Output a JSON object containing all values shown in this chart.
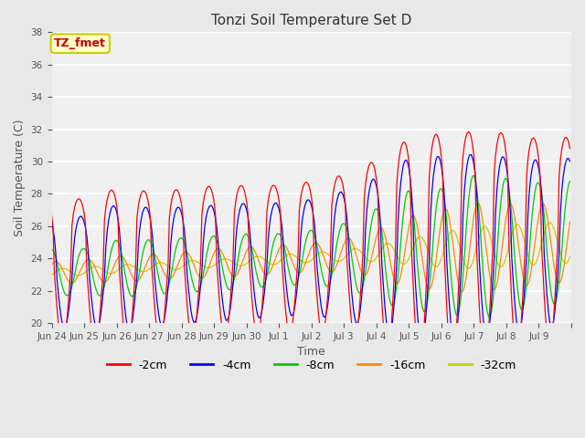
{
  "title": "Tonzi Soil Temperature Set D",
  "xlabel": "Time",
  "ylabel": "Soil Temperature (C)",
  "ylim": [
    20,
    38
  ],
  "yticks": [
    20,
    22,
    24,
    26,
    28,
    30,
    32,
    34,
    36,
    38
  ],
  "annotation_text": "TZ_fmet",
  "annotation_color": "#cc0000",
  "annotation_bg": "#ffffcc",
  "annotation_border": "#cccc00",
  "colors": {
    "-2cm": "#ff0000",
    "-4cm": "#0000ff",
    "-8cm": "#00cc00",
    "-16cm": "#ff8800",
    "-32cm": "#cccc00"
  },
  "legend_labels": [
    "-2cm",
    "-4cm",
    "-8cm",
    "-16cm",
    "-32cm"
  ],
  "bg_color": "#e8e8e8",
  "plot_bg_color": "#f0f0f0",
  "tick_labels": [
    "Jun 24",
    "Jun 25",
    "Jun 26",
    "Jun 27",
    "Jun 28",
    "Jun 29",
    "Jun 30",
    "Jul 1",
    "Jul 2",
    "Jul 3",
    "Jul 4",
    "Jul 5",
    "Jul 6",
    "Jul 7",
    "Jul 8",
    "Jul 9"
  ],
  "base_temp": 23.1,
  "trend_per_day": 0.12,
  "peak_hour": 14,
  "hours_per_day": 24,
  "total_days": 16,
  "amp_profiles": {
    "-2cm": [
      4.5,
      4.5,
      5.0,
      4.7,
      4.7,
      4.8,
      4.7,
      4.6,
      4.7,
      5.0,
      5.8,
      7.0,
      7.2,
      7.2,
      7.0,
      6.5
    ],
    "-4cm": [
      3.5,
      3.4,
      4.0,
      3.7,
      3.6,
      3.6,
      3.6,
      3.5,
      3.6,
      4.0,
      4.7,
      5.8,
      5.8,
      5.8,
      5.5,
      5.2
    ],
    "-8cm": [
      1.5,
      1.4,
      1.8,
      1.7,
      1.7,
      1.7,
      1.7,
      1.6,
      1.7,
      2.0,
      2.8,
      3.8,
      3.8,
      4.5,
      4.2,
      3.8
    ],
    "-16cm": [
      0.7,
      0.7,
      0.8,
      0.8,
      0.8,
      0.9,
      0.9,
      0.9,
      0.9,
      1.0,
      1.5,
      2.2,
      2.5,
      2.8,
      2.6,
      2.5
    ],
    "-32cm": [
      0.25,
      0.25,
      0.25,
      0.25,
      0.25,
      0.25,
      0.25,
      0.3,
      0.3,
      0.35,
      0.5,
      0.8,
      1.1,
      1.3,
      1.3,
      1.3
    ]
  },
  "phase_lag_hours": {
    "-2cm": 0.0,
    "-4cm": 1.5,
    "-8cm": 3.5,
    "-16cm": 7.0,
    "-32cm": 12.0
  },
  "sharpness": {
    "-2cm": 3.0,
    "-4cm": 2.0,
    "-8cm": 1.2,
    "-16cm": 1.0,
    "-32cm": 1.0
  }
}
